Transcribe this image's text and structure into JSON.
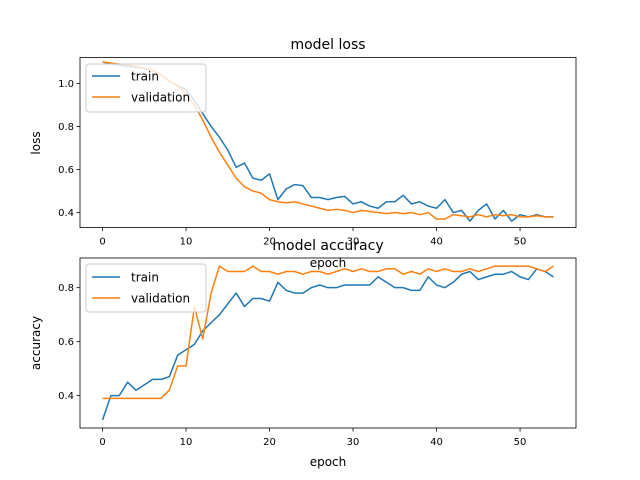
{
  "chart_data": [
    {
      "type": "line",
      "title": "model loss",
      "xlabel": "epoch",
      "ylabel": "loss",
      "xlim": [
        -2.7,
        56.7
      ],
      "ylim": [
        0.33,
        1.12
      ],
      "xticks": [
        0,
        10,
        20,
        30,
        40,
        50
      ],
      "yticks": [
        0.4,
        0.6,
        0.8,
        1.0
      ],
      "ytick_labels": [
        "0.4",
        "0.6",
        "0.8",
        "1.0"
      ],
      "legend_placement": "upper-left",
      "grid": false,
      "series": [
        {
          "name": "train",
          "color": "#1f77b4",
          "values": [
            1.1,
            1.09,
            1.085,
            1.08,
            1.075,
            1.07,
            1.06,
            1.04,
            1.01,
            0.99,
            0.97,
            0.92,
            0.86,
            0.8,
            0.75,
            0.69,
            0.61,
            0.63,
            0.56,
            0.55,
            0.58,
            0.46,
            0.51,
            0.53,
            0.525,
            0.47,
            0.47,
            0.46,
            0.47,
            0.475,
            0.44,
            0.45,
            0.43,
            0.42,
            0.45,
            0.45,
            0.48,
            0.44,
            0.45,
            0.43,
            0.42,
            0.46,
            0.4,
            0.41,
            0.36,
            0.41,
            0.44,
            0.37,
            0.41,
            0.36,
            0.39,
            0.38,
            0.39,
            0.38,
            0.38
          ]
        },
        {
          "name": "validation",
          "color": "#ff7f0e",
          "values": [
            1.1,
            1.095,
            1.09,
            1.085,
            1.08,
            1.07,
            1.06,
            1.04,
            1.01,
            0.99,
            0.95,
            0.9,
            0.83,
            0.75,
            0.68,
            0.62,
            0.56,
            0.52,
            0.5,
            0.49,
            0.46,
            0.45,
            0.445,
            0.45,
            0.44,
            0.43,
            0.42,
            0.41,
            0.415,
            0.41,
            0.4,
            0.41,
            0.405,
            0.4,
            0.395,
            0.4,
            0.395,
            0.4,
            0.39,
            0.4,
            0.37,
            0.37,
            0.39,
            0.385,
            0.38,
            0.39,
            0.38,
            0.39,
            0.385,
            0.39,
            0.38,
            0.38,
            0.385,
            0.38,
            0.38
          ]
        }
      ]
    },
    {
      "type": "line",
      "title": "model accuracy",
      "xlabel": "epoch",
      "ylabel": "accuracy",
      "xlim": [
        -2.7,
        56.7
      ],
      "ylim": [
        0.28,
        0.91
      ],
      "xticks": [
        0,
        10,
        20,
        30,
        40,
        50
      ],
      "yticks": [
        0.4,
        0.6,
        0.8
      ],
      "ytick_labels": [
        "0.4",
        "0.6",
        "0.8"
      ],
      "legend_placement": "upper-left",
      "grid": false,
      "series": [
        {
          "name": "train",
          "color": "#1f77b4",
          "values": [
            0.31,
            0.4,
            0.4,
            0.45,
            0.42,
            0.44,
            0.46,
            0.46,
            0.47,
            0.55,
            0.57,
            0.59,
            0.64,
            0.67,
            0.7,
            0.74,
            0.78,
            0.73,
            0.76,
            0.76,
            0.75,
            0.82,
            0.79,
            0.78,
            0.78,
            0.8,
            0.81,
            0.8,
            0.8,
            0.81,
            0.81,
            0.81,
            0.81,
            0.84,
            0.82,
            0.8,
            0.8,
            0.79,
            0.79,
            0.84,
            0.81,
            0.8,
            0.82,
            0.85,
            0.86,
            0.83,
            0.84,
            0.85,
            0.85,
            0.86,
            0.84,
            0.83,
            0.87,
            0.86,
            0.84
          ]
        },
        {
          "name": "validation",
          "color": "#ff7f0e",
          "values": [
            0.39,
            0.39,
            0.39,
            0.39,
            0.39,
            0.39,
            0.39,
            0.39,
            0.42,
            0.51,
            0.51,
            0.73,
            0.61,
            0.78,
            0.88,
            0.86,
            0.86,
            0.86,
            0.88,
            0.86,
            0.86,
            0.85,
            0.86,
            0.86,
            0.85,
            0.86,
            0.86,
            0.85,
            0.86,
            0.87,
            0.86,
            0.87,
            0.86,
            0.86,
            0.87,
            0.87,
            0.85,
            0.86,
            0.85,
            0.87,
            0.86,
            0.87,
            0.86,
            0.86,
            0.87,
            0.86,
            0.87,
            0.88,
            0.88,
            0.88,
            0.88,
            0.88,
            0.87,
            0.86,
            0.88
          ]
        }
      ]
    }
  ]
}
